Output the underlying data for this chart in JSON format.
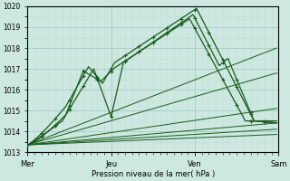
{
  "xlabel": "Pression niveau de la mer( hPa )",
  "ylim": [
    1013,
    1020
  ],
  "yticks": [
    1013,
    1014,
    1015,
    1016,
    1017,
    1018,
    1019,
    1020
  ],
  "xtick_labels": [
    "Mer",
    "Jeu",
    "Ven",
    "Sam"
  ],
  "xtick_positions": [
    0,
    48,
    96,
    144
  ],
  "bg_color": "#cce8e0",
  "grid_major_color": "#aacfc8",
  "grid_minor_color": "#c0ddd6",
  "line_color": "#1a5c1a",
  "total_points": 144
}
